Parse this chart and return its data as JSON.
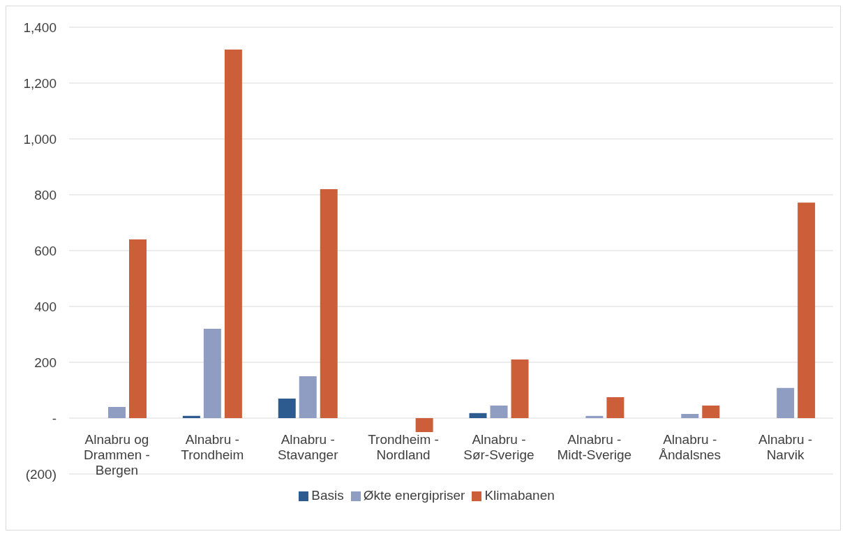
{
  "chart_data": {
    "type": "bar",
    "categories": [
      "Alnabru og Drammen - Bergen",
      "Alnabru - Trondheim",
      "Alnabru - Stavanger",
      "Trondheim - Nordland",
      "Alnabru - Sør-Sverige",
      "Alnabru - Midt-Sverige",
      "Alnabru - Åndalsnes",
      "Alnabru - Narvik"
    ],
    "series": [
      {
        "name": "Basis",
        "color": "#2e5b8f",
        "values": [
          null,
          8,
          70,
          null,
          18,
          null,
          null,
          null
        ]
      },
      {
        "name": "Økte energipriser",
        "color": "#8e9dc1",
        "values": [
          40,
          320,
          150,
          null,
          45,
          8,
          15,
          108
        ]
      },
      {
        "name": "Klimabanen",
        "color": "#cc5f3a",
        "values": [
          640,
          1320,
          820,
          -50,
          210,
          75,
          45,
          772
        ]
      }
    ],
    "ylim": [
      -200,
      1400
    ],
    "yticks": [
      {
        "value": -200,
        "label": "(200)"
      },
      {
        "value": 0,
        "label": "-"
      },
      200,
      400,
      600,
      800,
      {
        "value": 1000,
        "label": "1,000"
      },
      {
        "value": 1200,
        "label": "1,200"
      },
      {
        "value": 1400,
        "label": "1,400"
      }
    ],
    "grid": "y",
    "legend": "bottom"
  }
}
